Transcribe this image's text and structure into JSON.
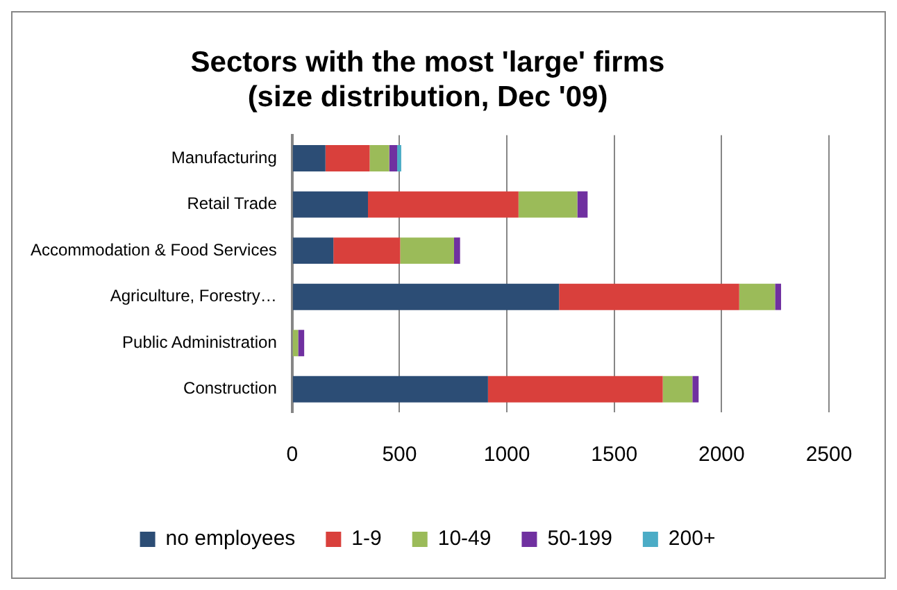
{
  "chart_data": {
    "type": "bar",
    "title": "Sectors with the most 'large' firms\n(size distribution, Dec '09)",
    "orientation": "horizontal",
    "stacked": true,
    "categories": [
      "Manufacturing",
      "Retail Trade",
      "Accommodation & Food Services",
      "Agriculture, Forestry…",
      "Public Administration",
      "Construction"
    ],
    "series": [
      {
        "name": "no employees",
        "color": "#2c4d75",
        "values": [
          155,
          353,
          192,
          1243,
          0,
          912
        ]
      },
      {
        "name": "1-9",
        "color": "#d9403c",
        "values": [
          206,
          701,
          311,
          839,
          0,
          814
        ]
      },
      {
        "name": "10-49",
        "color": "#9bbb59",
        "values": [
          91,
          274,
          251,
          167,
          28,
          138
        ]
      },
      {
        "name": "50-199",
        "color": "#7030a0",
        "values": [
          37,
          48,
          28,
          28,
          28,
          29
        ]
      },
      {
        "name": "200+",
        "color": "#4bacc6",
        "values": [
          19,
          0,
          0,
          0,
          0,
          0
        ]
      }
    ],
    "xlim": [
      0,
      2500
    ],
    "xticks": [
      0,
      500,
      1000,
      1500,
      2000,
      2500
    ],
    "grid": "x",
    "legend": "bottom"
  }
}
